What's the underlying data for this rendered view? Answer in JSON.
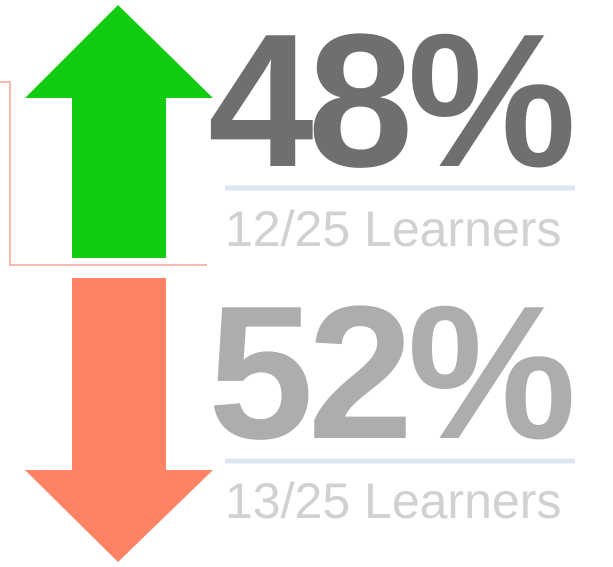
{
  "stats": [
    {
      "percent": "48%",
      "detail": "12/25 Learners"
    },
    {
      "percent": "52%",
      "detail": "13/25 Learners"
    }
  ]
}
